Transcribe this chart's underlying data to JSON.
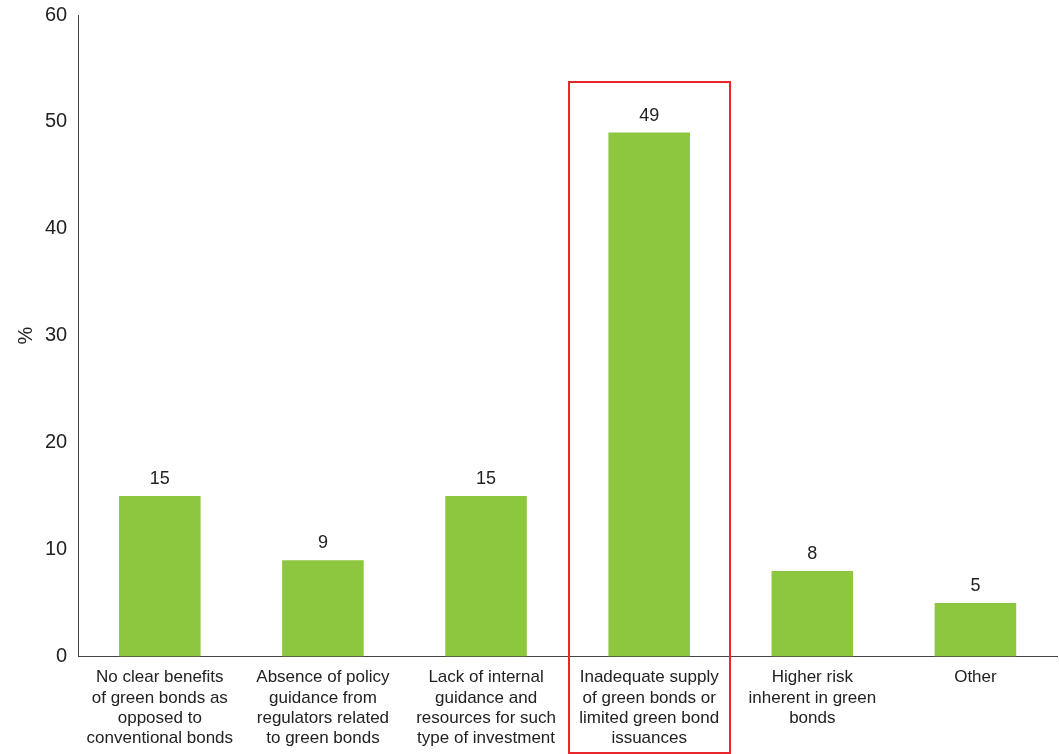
{
  "chart_data": {
    "type": "bar",
    "ylabel": "%",
    "categories": [
      "No clear benefits of green bonds as opposed to conventional bonds",
      "Absence of policy guidance from regulators related to green bonds",
      "Lack of internal guidance and resources for such type of investment",
      "Inadequate supply of green bonds or limited green bond issuances",
      "Higher risk inherent in green bonds",
      "Other"
    ],
    "values": [
      15,
      9,
      15,
      49,
      8,
      5
    ],
    "color": "#8dc63f",
    "ylim": [
      0,
      60
    ],
    "yticks": [
      0,
      10,
      20,
      30,
      40,
      50,
      60
    ],
    "grid": false,
    "legend": false,
    "data_labels": true
  }
}
